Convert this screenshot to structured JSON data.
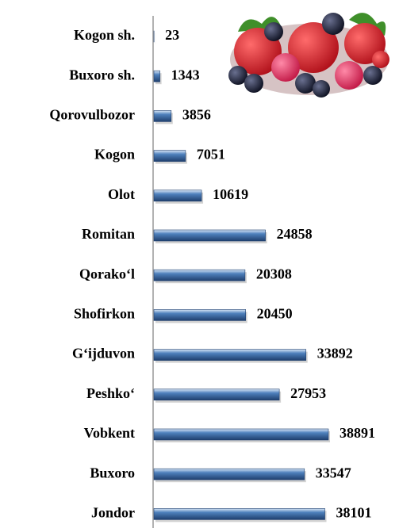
{
  "chart_data": {
    "type": "bar",
    "orientation": "horizontal",
    "color": "#4f81bd",
    "categories": [
      "Kogon sh.",
      "Buxoro sh.",
      "Qorovulbozor",
      "Kogon",
      "Olot",
      "Romitan",
      "Qorako‘l",
      "Shofirkon",
      "G‘ijduvon",
      "Peshko‘",
      "Vobkent",
      "Buxoro",
      "Jondor"
    ],
    "values": [
      23,
      1343,
      3856,
      7051,
      10619,
      24858,
      20308,
      20450,
      33892,
      27953,
      38891,
      33547,
      38101
    ]
  }
}
